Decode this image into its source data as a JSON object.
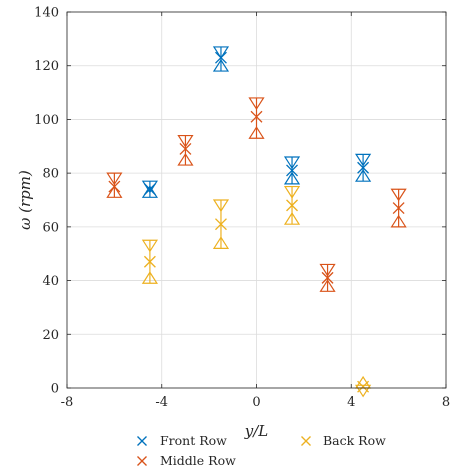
{
  "chart_data": {
    "type": "scatter",
    "title": "",
    "xlabel": "y/L",
    "ylabel": "ω (rpm)",
    "xlim": [
      -8,
      8
    ],
    "ylim": [
      0,
      140
    ],
    "xticks": [
      -8,
      -4,
      0,
      4,
      8
    ],
    "yticks": [
      0,
      20,
      40,
      60,
      80,
      100,
      120,
      140
    ],
    "grid": true,
    "legend_position": "bottom",
    "series": [
      {
        "name": "Front Row",
        "color": "#0072BD",
        "points": [
          {
            "x": -4.5,
            "y": 74,
            "lo": 71,
            "hi": 77
          },
          {
            "x": -1.5,
            "y": 123,
            "lo": 118,
            "hi": 127
          },
          {
            "x": 1.5,
            "y": 81,
            "lo": 76,
            "hi": 86
          },
          {
            "x": 4.5,
            "y": 82,
            "lo": 77,
            "hi": 87
          }
        ]
      },
      {
        "name": "Middle Row",
        "color": "#D95319",
        "points": [
          {
            "x": -6,
            "y": 75,
            "lo": 71,
            "hi": 80
          },
          {
            "x": -3,
            "y": 89,
            "lo": 83,
            "hi": 94
          },
          {
            "x": 0,
            "y": 101,
            "lo": 93,
            "hi": 108
          },
          {
            "x": 3,
            "y": 41,
            "lo": 36,
            "hi": 46
          },
          {
            "x": 6,
            "y": 67,
            "lo": 60,
            "hi": 74
          }
        ]
      },
      {
        "name": "Back Row",
        "color": "#EDB120",
        "points": [
          {
            "x": -4.5,
            "y": 47,
            "lo": 39,
            "hi": 55
          },
          {
            "x": -1.5,
            "y": 61,
            "lo": 52,
            "hi": 70
          },
          {
            "x": 1.5,
            "y": 68,
            "lo": 61,
            "hi": 75
          },
          {
            "x": 4.5,
            "y": 0.5,
            "lo": 0,
            "hi": 1
          }
        ]
      }
    ]
  }
}
